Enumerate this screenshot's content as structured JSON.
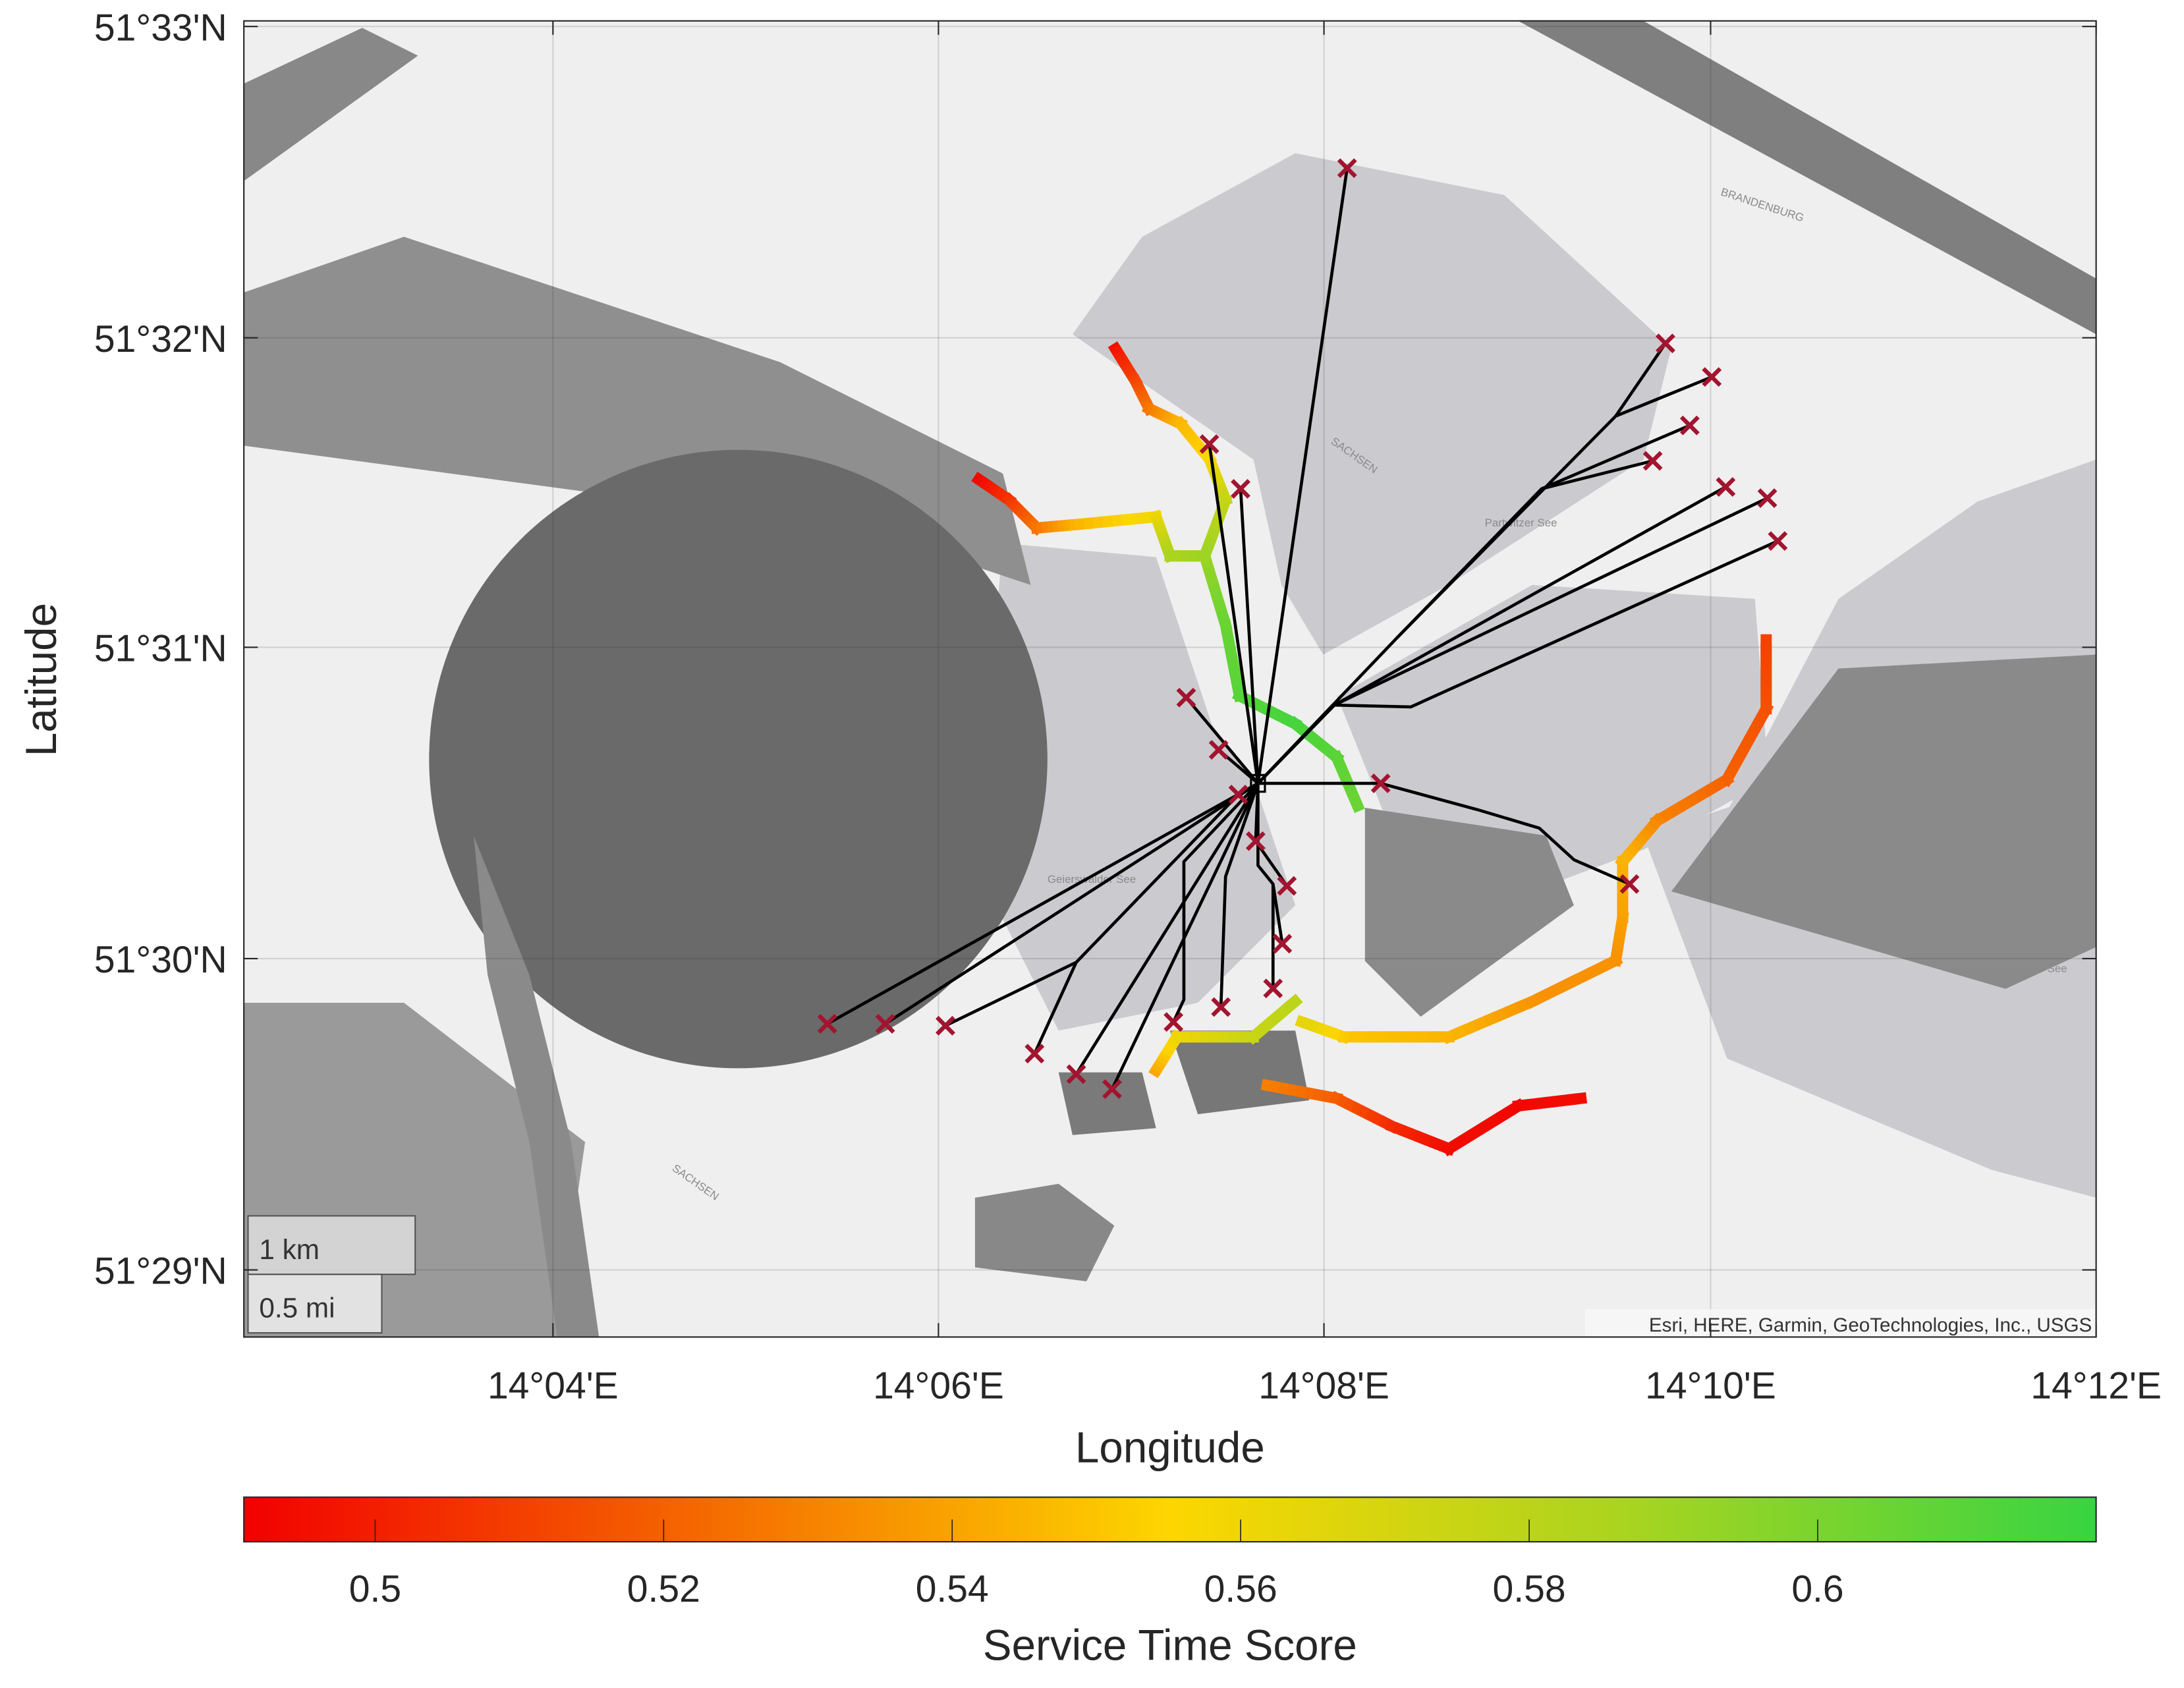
{
  "chart_data": {
    "type": "map",
    "xlabel": "Longitude",
    "ylabel": "Latitude",
    "xlim": [
      14.04,
      14.2
    ],
    "ylim": [
      51.4797,
      51.5503
    ],
    "xticks": [
      14.0667,
      14.1,
      14.1333,
      14.1667,
      14.2
    ],
    "xtick_labels": [
      "14°04'E",
      "14°06'E",
      "14°08'E",
      "14°10'E",
      "14°12'E"
    ],
    "yticks": [
      51.55,
      51.5333,
      51.5167,
      51.5,
      51.4833
    ],
    "ytick_labels": [
      "51°33'N",
      "51°32'N",
      "51°31'N",
      "51°30'N",
      "51°29'N"
    ],
    "grid": true,
    "basemap_attribution": "Esri, HERE, Garmin, GeoTechnologies, Inc., USGS",
    "scalebar": {
      "km_label": "1 km",
      "mi_label": "0.5 mi"
    },
    "place_labels": [
      "BRANDENBURG",
      "SACHSEN",
      "SACHSEN",
      "Geierswalder See",
      "Partwitzer See",
      "Neuwieser See"
    ],
    "depot": {
      "lon": 14.1276,
      "lat": 51.5094
    },
    "customers": [
      {
        "lon": 14.1353,
        "lat": 51.5424
      },
      {
        "lon": 14.1628,
        "lat": 51.533
      },
      {
        "lon": 14.1668,
        "lat": 51.5312
      },
      {
        "lon": 14.1649,
        "lat": 51.5286
      },
      {
        "lon": 14.1617,
        "lat": 51.5267
      },
      {
        "lon": 14.168,
        "lat": 51.5253
      },
      {
        "lon": 14.1716,
        "lat": 51.5247
      },
      {
        "lon": 14.1725,
        "lat": 51.5224
      },
      {
        "lon": 14.1234,
        "lat": 51.5276
      },
      {
        "lon": 14.1261,
        "lat": 51.5252
      },
      {
        "lon": 14.1214,
        "lat": 51.514
      },
      {
        "lon": 14.1242,
        "lat": 51.5112
      },
      {
        "lon": 14.1259,
        "lat": 51.5088
      },
      {
        "lon": 14.1274,
        "lat": 51.5063
      },
      {
        "lon": 14.1301,
        "lat": 51.5039
      },
      {
        "lon": 14.1297,
        "lat": 51.5008
      },
      {
        "lon": 14.1289,
        "lat": 51.4984
      },
      {
        "lon": 14.1244,
        "lat": 51.4974
      },
      {
        "lon": 14.1203,
        "lat": 51.4966
      },
      {
        "lon": 14.1382,
        "lat": 51.5094
      },
      {
        "lon": 14.1597,
        "lat": 51.504
      },
      {
        "lon": 14.0904,
        "lat": 51.4965
      },
      {
        "lon": 14.0954,
        "lat": 51.4965
      },
      {
        "lon": 14.1006,
        "lat": 51.4964
      },
      {
        "lon": 14.1083,
        "lat": 51.4949
      },
      {
        "lon": 14.1119,
        "lat": 51.4938
      },
      {
        "lon": 14.115,
        "lat": 51.493
      }
    ],
    "route_color": "#000000",
    "customer_marker_color": "#a2142f",
    "routes": [
      [
        [
          14.1276,
          51.5094
        ],
        [
          14.1353,
          51.5424
        ]
      ],
      [
        [
          14.1276,
          51.5094
        ],
        [
          14.1342,
          51.5136
        ],
        [
          14.1408,
          51.5135
        ],
        [
          14.1725,
          51.5224
        ]
      ],
      [
        [
          14.1276,
          51.5094
        ],
        [
          14.1342,
          51.5136
        ],
        [
          14.168,
          51.5253
        ]
      ],
      [
        [
          14.1276,
          51.5094
        ],
        [
          14.1342,
          51.5136
        ],
        [
          14.1716,
          51.5247
        ]
      ],
      [
        [
          14.1276,
          51.5094
        ],
        [
          14.1396,
          51.5172
        ],
        [
          14.1521,
          51.5252
        ],
        [
          14.1617,
          51.5267
        ]
      ],
      [
        [
          14.1521,
          51.5252
        ],
        [
          14.1649,
          51.5286
        ]
      ],
      [
        [
          14.1396,
          51.5172
        ],
        [
          14.1585,
          51.5291
        ],
        [
          14.1668,
          51.5312
        ]
      ],
      [
        [
          14.1585,
          51.5291
        ],
        [
          14.1628,
          51.533
        ]
      ],
      [
        [
          14.1276,
          51.5094
        ],
        [
          14.1234,
          51.5276
        ]
      ],
      [
        [
          14.1276,
          51.5094
        ],
        [
          14.1261,
          51.5252
        ]
      ],
      [
        [
          14.1276,
          51.5094
        ],
        [
          14.1214,
          51.514
        ]
      ],
      [
        [
          14.1276,
          51.5094
        ],
        [
          14.1242,
          51.5112
        ]
      ],
      [
        [
          14.1276,
          51.5094
        ],
        [
          14.1382,
          51.5094
        ],
        [
          14.1465,
          51.508
        ],
        [
          14.1519,
          51.507
        ],
        [
          14.1549,
          51.5053
        ],
        [
          14.1597,
          51.504
        ]
      ],
      [
        [
          14.1276,
          51.5094
        ],
        [
          14.1259,
          51.5088
        ],
        [
          14.1119,
          51.4998
        ],
        [
          14.1006,
          51.4964
        ]
      ],
      [
        [
          14.1119,
          51.4998
        ],
        [
          14.1083,
          51.4949
        ]
      ],
      [
        [
          14.1276,
          51.5094
        ],
        [
          14.1212,
          51.5052
        ],
        [
          14.1212,
          51.4978
        ],
        [
          14.1203,
          51.4966
        ]
      ],
      [
        [
          14.1276,
          51.5094
        ],
        [
          14.1248,
          51.5044
        ],
        [
          14.1244,
          51.4974
        ]
      ],
      [
        [
          14.1276,
          51.5094
        ],
        [
          14.1274,
          51.5063
        ],
        [
          14.1301,
          51.5039
        ]
      ],
      [
        [
          14.1276,
          51.5094
        ],
        [
          14.1276,
          51.505
        ],
        [
          14.1289,
          51.504
        ],
        [
          14.1297,
          51.5008
        ]
      ],
      [
        [
          14.1289,
          51.504
        ],
        [
          14.1289,
          51.4984
        ]
      ],
      [
        [
          14.1276,
          51.5094
        ],
        [
          14.115,
          51.493
        ]
      ],
      [
        [
          14.1276,
          51.5094
        ],
        [
          14.1119,
          51.4938
        ]
      ],
      [
        [
          14.1276,
          51.5094
        ],
        [
          14.0954,
          51.4965
        ]
      ],
      [
        [
          14.1276,
          51.5094
        ],
        [
          14.0904,
          51.4965
        ]
      ]
    ],
    "trajectories": [
      [
        [
          14.1153,
          51.5327,
          0.495
        ],
        [
          14.117,
          51.531,
          0.51
        ],
        [
          14.1182,
          51.5295,
          0.525
        ],
        [
          14.1209,
          51.5287,
          0.545
        ],
        [
          14.1234,
          51.5268,
          0.555
        ],
        [
          14.1248,
          51.5246,
          0.575
        ],
        [
          14.123,
          51.5216,
          0.59
        ],
        [
          14.1248,
          51.5179,
          0.605
        ],
        [
          14.126,
          51.5141,
          0.61
        ],
        [
          14.1308,
          51.5126,
          0.615
        ],
        [
          14.1344,
          51.5108,
          0.61
        ],
        [
          14.1362,
          51.5082,
          0.605
        ]
      ],
      [
        [
          14.1035,
          51.5257,
          0.492
        ],
        [
          14.1061,
          51.5246,
          0.505
        ],
        [
          14.1085,
          51.5231,
          0.525
        ],
        [
          14.1122,
          51.5233,
          0.545
        ],
        [
          14.1188,
          51.5237,
          0.56
        ],
        [
          14.12,
          51.5216,
          0.585
        ],
        [
          14.123,
          51.5216,
          0.59
        ]
      ],
      [
        [
          14.1715,
          51.5171,
          0.51
        ],
        [
          14.1715,
          51.5134,
          0.515
        ],
        [
          14.1681,
          51.5096,
          0.52
        ],
        [
          14.1621,
          51.5074,
          0.53
        ],
        [
          14.1591,
          51.5052,
          0.545
        ],
        [
          14.1591,
          51.5022,
          0.54
        ],
        [
          14.1585,
          51.4999,
          0.535
        ],
        [
          14.1513,
          51.4977,
          0.535
        ],
        [
          14.1441,
          51.4958,
          0.545
        ],
        [
          14.135,
          51.4958,
          0.55
        ],
        [
          14.1314,
          51.4966,
          0.565
        ]
      ],
      [
        [
          14.1284,
          51.4932,
          0.53
        ],
        [
          14.1344,
          51.4925,
          0.52
        ],
        [
          14.1392,
          51.491,
          0.505
        ],
        [
          14.1441,
          51.4898,
          0.495
        ],
        [
          14.1501,
          51.4921,
          0.493
        ],
        [
          14.1555,
          51.4925,
          0.495
        ]
      ],
      [
        [
          14.1188,
          51.494,
          0.54
        ],
        [
          14.1206,
          51.4958,
          0.56
        ],
        [
          14.1272,
          51.4958,
          0.575
        ],
        [
          14.1308,
          51.4977,
          0.58
        ]
      ]
    ],
    "colorbar": {
      "label": "Service Time Score",
      "range": [
        0.4909,
        0.6193
      ],
      "ticks": [
        0.5,
        0.52,
        0.54,
        0.56,
        0.58,
        0.6
      ],
      "tick_labels": [
        "0.5",
        "0.52",
        "0.54",
        "0.56",
        "0.58",
        "0.6"
      ],
      "colormap": [
        "#f20000",
        "#f56a00",
        "#fdd600",
        "#a8d420",
        "#38d442"
      ]
    }
  }
}
